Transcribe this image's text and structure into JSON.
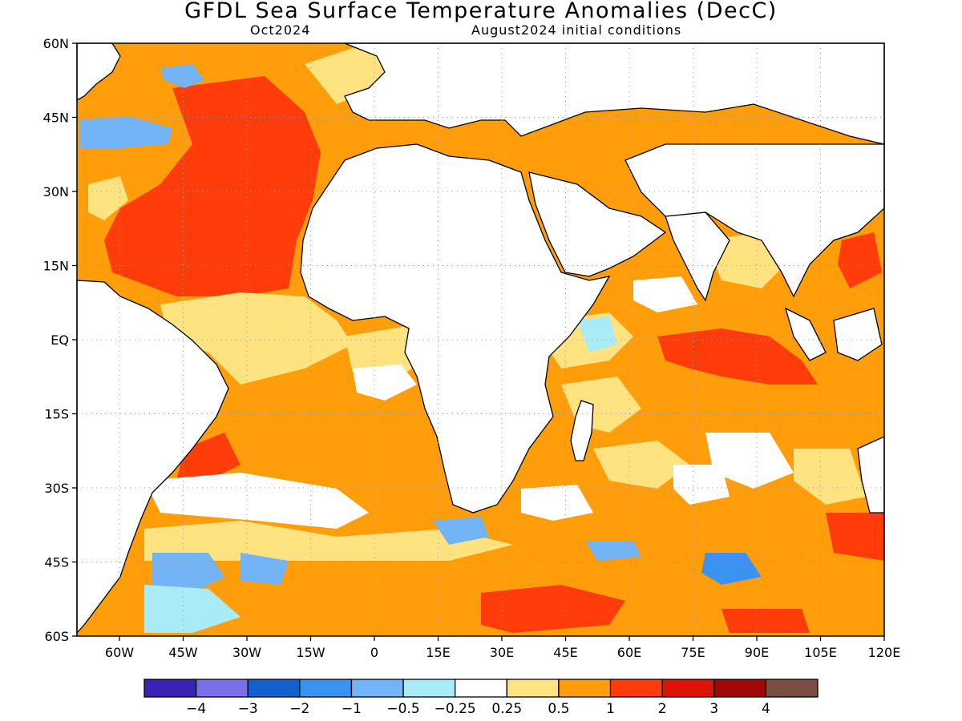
{
  "header": {
    "title": "GFDL Sea Surface Temperature Anomalies (DecC)",
    "left_subtitle": "Oct2024",
    "right_subtitle": "August2024 initial conditions"
  },
  "map": {
    "lon_range": [
      -70,
      120
    ],
    "lat_range": [
      -60,
      60
    ],
    "gridlines": "dotted",
    "lat_ticks": [
      {
        "value": 60,
        "label": "60N"
      },
      {
        "value": 45,
        "label": "45N"
      },
      {
        "value": 30,
        "label": "30N"
      },
      {
        "value": 15,
        "label": "15N"
      },
      {
        "value": 0,
        "label": "EQ"
      },
      {
        "value": -15,
        "label": "15S"
      },
      {
        "value": -30,
        "label": "30S"
      },
      {
        "value": -45,
        "label": "45S"
      },
      {
        "value": -60,
        "label": "60S"
      }
    ],
    "lon_ticks": [
      {
        "value": -60,
        "label": "60W"
      },
      {
        "value": -45,
        "label": "45W"
      },
      {
        "value": -30,
        "label": "30W"
      },
      {
        "value": -15,
        "label": "15W"
      },
      {
        "value": 0,
        "label": "0"
      },
      {
        "value": 15,
        "label": "15E"
      },
      {
        "value": 30,
        "label": "30E"
      },
      {
        "value": 45,
        "label": "45E"
      },
      {
        "value": 60,
        "label": "60E"
      },
      {
        "value": 75,
        "label": "75E"
      },
      {
        "value": 90,
        "label": "90E"
      },
      {
        "value": 105,
        "label": "105E"
      },
      {
        "value": 120,
        "label": "120E"
      }
    ]
  },
  "colorbar": {
    "colors": [
      "#3a22b4",
      "#7b6ee8",
      "#1560cf",
      "#3a93f0",
      "#72b4f5",
      "#a9ecf7",
      "#ffffff",
      "#ffe380",
      "#ff9e0a",
      "#ff3c0a",
      "#dc1408",
      "#a00808",
      "#7a4e42"
    ],
    "labels": [
      "-4",
      "-3",
      "-2",
      "-1",
      "-0.5",
      "-0.25",
      "0.25",
      "0.5",
      "1",
      "2",
      "3",
      "4"
    ]
  }
}
